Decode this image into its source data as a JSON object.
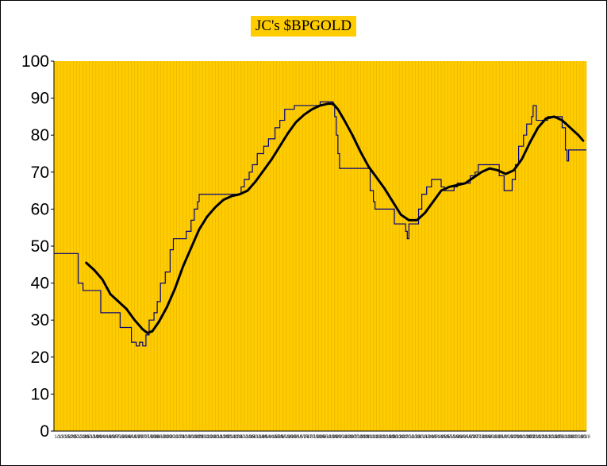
{
  "chart_data": {
    "type": "line",
    "title": "JC's $BPGOLD",
    "xlabel": "",
    "ylabel": "",
    "ylim": [
      0,
      100
    ],
    "yticks": [
      0,
      10,
      20,
      30,
      40,
      50,
      60,
      70,
      80,
      90,
      100
    ],
    "grid": "vertical",
    "legend": "none",
    "x_count": 330,
    "xtick_labels": [
      "1/1",
      "1/8",
      "1/15",
      "1/22",
      "1/29",
      "2/5",
      "2/12",
      "2/19",
      "2/26",
      "3/5",
      "3/12",
      "3/19",
      "3/26",
      "4/2",
      "4/9",
      "4/16",
      "4/23",
      "4/30",
      "5/7",
      "5/14",
      "5/21",
      "5/28",
      "6/4",
      "6/11",
      "6/18",
      "6/25",
      "7/2",
      "7/9",
      "7/16",
      "7/23",
      "7/30",
      "8/6",
      "8/13",
      "8/20",
      "8/27",
      "9/3",
      "9/10",
      "9/17",
      "9/24",
      "10/1",
      "10/8",
      "10/15",
      "10/22",
      "10/29",
      "11/5",
      "11/12",
      "11/19",
      "11/26",
      "12/3",
      "12/10",
      "12/17",
      "12/24",
      "12/31",
      "1/7",
      "1/14",
      "1/21",
      "1/28",
      "2/4",
      "2/11",
      "2/18",
      "2/25",
      "3/4",
      "3/11",
      "3/18",
      "3/25",
      "4/1",
      "4/8",
      "4/15",
      "4/22",
      "4/29",
      "5/6",
      "5/13",
      "5/20",
      "5/27",
      "6/3",
      "6/10",
      "6/17",
      "6/24",
      "7/1",
      "7/8",
      "7/15",
      "7/22",
      "7/29",
      "8/5",
      "8/12",
      "8/19",
      "8/26",
      "9/2",
      "9/9",
      "9/16",
      "9/23",
      "9/30",
      "10/7",
      "10/14",
      "10/21",
      "10/28",
      "11/4",
      "11/11",
      "11/18",
      "11/25",
      "12/2",
      "12/9",
      "12/16",
      "12/23",
      "12/30",
      "1/6",
      "1/13",
      "1/20",
      "1/27",
      "2/3",
      "2/10",
      "2/17",
      "2/24",
      "3/3",
      "3/10",
      "3/17",
      "3/24",
      "3/31",
      "4/7",
      "4/14",
      "4/21",
      "4/28",
      "5/5",
      "5/12",
      "5/19",
      "5/26",
      "6/2",
      "6/9",
      "6/16",
      "6/23",
      "6/30",
      "7/7",
      "7/14",
      "7/21",
      "7/28",
      "8/4",
      "8/11",
      "8/18",
      "8/25",
      "9/1",
      "9/8",
      "9/15",
      "9/22",
      "9/29",
      "10/6",
      "10/13",
      "10/20",
      "10/27",
      "11/3",
      "11/10",
      "11/17",
      "11/24",
      "12/1",
      "12/8",
      "12/15",
      "12/22",
      "12/29",
      "1/5",
      "1/12",
      "1/19",
      "1/26",
      "2/2",
      "2/9",
      "2/16",
      "2/23",
      "3/1",
      "3/8"
    ],
    "series": [
      {
        "kind": "step",
        "color": "#000080",
        "points": [
          [
            0,
            48
          ],
          [
            14,
            48
          ],
          [
            15,
            40
          ],
          [
            18,
            38
          ],
          [
            28,
            38
          ],
          [
            29,
            32
          ],
          [
            40,
            32
          ],
          [
            41,
            28
          ],
          [
            47,
            28
          ],
          [
            48,
            24
          ],
          [
            51,
            23
          ],
          [
            53,
            24
          ],
          [
            55,
            23
          ],
          [
            57,
            26
          ],
          [
            59,
            30
          ],
          [
            62,
            32
          ],
          [
            64,
            35
          ],
          [
            66,
            40
          ],
          [
            69,
            43
          ],
          [
            72,
            49
          ],
          [
            74,
            52
          ],
          [
            80,
            52
          ],
          [
            82,
            54
          ],
          [
            85,
            57
          ],
          [
            87,
            60
          ],
          [
            89,
            62
          ],
          [
            90,
            64
          ],
          [
            114,
            64
          ],
          [
            116,
            66
          ],
          [
            118,
            68
          ],
          [
            121,
            70
          ],
          [
            123,
            72
          ],
          [
            126,
            75
          ],
          [
            130,
            77
          ],
          [
            133,
            79
          ],
          [
            137,
            82
          ],
          [
            140,
            84
          ],
          [
            143,
            87
          ],
          [
            148,
            87
          ],
          [
            149,
            88
          ],
          [
            162,
            88
          ],
          [
            165,
            89
          ],
          [
            171,
            89
          ],
          [
            173,
            88
          ],
          [
            174,
            85
          ],
          [
            175,
            80
          ],
          [
            176,
            75
          ],
          [
            177,
            71
          ],
          [
            195,
            71
          ],
          [
            196,
            65
          ],
          [
            198,
            62
          ],
          [
            199,
            60
          ],
          [
            210,
            60
          ],
          [
            211,
            56
          ],
          [
            216,
            56
          ],
          [
            218,
            54
          ],
          [
            219,
            52
          ],
          [
            220,
            56
          ],
          [
            225,
            56
          ],
          [
            226,
            60
          ],
          [
            228,
            64
          ],
          [
            231,
            66
          ],
          [
            234,
            68
          ],
          [
            236,
            68
          ],
          [
            240,
            66
          ],
          [
            242,
            65
          ],
          [
            246,
            65
          ],
          [
            248,
            66
          ],
          [
            250,
            67
          ],
          [
            254,
            67
          ],
          [
            258,
            69
          ],
          [
            261,
            70
          ],
          [
            263,
            72
          ],
          [
            274,
            72
          ],
          [
            276,
            69
          ],
          [
            279,
            65
          ],
          [
            282,
            65
          ],
          [
            284,
            68
          ],
          [
            286,
            72
          ],
          [
            288,
            77
          ],
          [
            291,
            80
          ],
          [
            293,
            83
          ],
          [
            296,
            85
          ],
          [
            297,
            88
          ],
          [
            299,
            84
          ],
          [
            304,
            84
          ],
          [
            306,
            85
          ],
          [
            313,
            85
          ],
          [
            315,
            82
          ],
          [
            317,
            76
          ],
          [
            318,
            73
          ],
          [
            319,
            76
          ],
          [
            330,
            76
          ]
        ]
      },
      {
        "kind": "smooth",
        "color": "#000000",
        "points": [
          [
            20,
            45.5
          ],
          [
            25,
            43.5
          ],
          [
            30,
            41
          ],
          [
            35,
            37
          ],
          [
            40,
            35
          ],
          [
            45,
            33
          ],
          [
            50,
            30
          ],
          [
            55,
            27.5
          ],
          [
            58,
            26.5
          ],
          [
            61,
            27
          ],
          [
            65,
            29.5
          ],
          [
            70,
            33.5
          ],
          [
            75,
            38.5
          ],
          [
            80,
            44.5
          ],
          [
            85,
            49.5
          ],
          [
            90,
            54.5
          ],
          [
            95,
            58
          ],
          [
            100,
            60.5
          ],
          [
            105,
            62.5
          ],
          [
            110,
            63.5
          ],
          [
            115,
            64
          ],
          [
            120,
            65
          ],
          [
            125,
            67.5
          ],
          [
            130,
            70.5
          ],
          [
            135,
            73.5
          ],
          [
            140,
            77
          ],
          [
            145,
            80.5
          ],
          [
            150,
            83.5
          ],
          [
            155,
            85.5
          ],
          [
            160,
            87
          ],
          [
            165,
            88
          ],
          [
            170,
            88.5
          ],
          [
            173,
            88.5
          ],
          [
            176,
            87
          ],
          [
            180,
            84
          ],
          [
            185,
            80
          ],
          [
            190,
            75.5
          ],
          [
            195,
            71.5
          ],
          [
            200,
            68.5
          ],
          [
            205,
            65.5
          ],
          [
            210,
            62
          ],
          [
            215,
            58.5
          ],
          [
            220,
            57
          ],
          [
            225,
            57
          ],
          [
            230,
            59
          ],
          [
            235,
            62
          ],
          [
            240,
            65
          ],
          [
            245,
            66
          ],
          [
            250,
            66.5
          ],
          [
            255,
            67
          ],
          [
            260,
            68.5
          ],
          [
            265,
            70
          ],
          [
            270,
            71
          ],
          [
            275,
            70.5
          ],
          [
            280,
            69.5
          ],
          [
            285,
            70.5
          ],
          [
            290,
            73.5
          ],
          [
            295,
            78
          ],
          [
            300,
            82
          ],
          [
            305,
            84.5
          ],
          [
            310,
            85
          ],
          [
            315,
            84
          ],
          [
            320,
            82
          ],
          [
            325,
            80
          ],
          [
            328,
            78.5
          ]
        ]
      }
    ]
  }
}
